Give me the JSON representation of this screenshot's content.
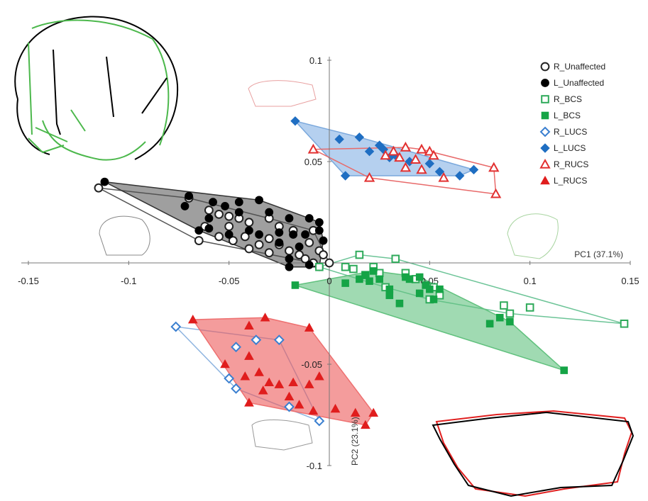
{
  "chart_data": {
    "type": "scatter",
    "title": "",
    "xlabel": "PC1 (37.1%)",
    "ylabel": "PC2 (23.1%)",
    "xlim": [
      -0.15,
      0.15
    ],
    "ylim": [
      -0.1,
      0.1
    ],
    "x_ticks": [
      "-0.15",
      "-0.1",
      "-0.05",
      "0",
      "0.05",
      "0.1",
      "0.15"
    ],
    "y_ticks": [
      "0.1",
      "0.05",
      "-0.05",
      "-0.1"
    ],
    "grid": false,
    "legend_position": "top-right",
    "series": [
      {
        "name": "R_Unaffected",
        "color": "#222222",
        "marker": "circle",
        "filled": false,
        "hull_fill": "none",
        "hull_stroke": "#555555",
        "points": [
          [
            -0.115,
            0.037
          ],
          [
            -0.07,
            0.032
          ],
          [
            -0.06,
            0.026
          ],
          [
            -0.055,
            0.024
          ],
          [
            -0.05,
            0.023
          ],
          [
            -0.045,
            0.022
          ],
          [
            -0.062,
            0.018
          ],
          [
            -0.05,
            0.018
          ],
          [
            -0.04,
            0.02
          ],
          [
            -0.03,
            0.022
          ],
          [
            -0.025,
            0.018
          ],
          [
            -0.055,
            0.013
          ],
          [
            -0.042,
            0.013
          ],
          [
            -0.03,
            0.012
          ],
          [
            -0.018,
            0.016
          ],
          [
            -0.008,
            0.016
          ],
          [
            -0.065,
            0.011
          ],
          [
            -0.048,
            0.011
          ],
          [
            -0.035,
            0.009
          ],
          [
            -0.025,
            0.009
          ],
          [
            -0.02,
            0.006
          ],
          [
            -0.01,
            0.01
          ],
          [
            -0.04,
            0.007
          ],
          [
            -0.03,
            0.005
          ],
          [
            -0.015,
            0.004
          ],
          [
            -0.005,
            0.006
          ],
          [
            -0.012,
            0.002
          ],
          [
            -0.003,
            0.004
          ],
          [
            -0.008,
            0.0
          ],
          [
            0.0,
            0.0
          ]
        ]
      },
      {
        "name": "L_Unaffected",
        "color": "#000000",
        "marker": "circle",
        "filled": true,
        "hull_fill": "rgba(80,80,80,0.55)",
        "hull_stroke": "#333333",
        "points": [
          [
            -0.112,
            0.04
          ],
          [
            -0.07,
            0.033
          ],
          [
            -0.072,
            0.028
          ],
          [
            -0.058,
            0.03
          ],
          [
            -0.052,
            0.028
          ],
          [
            -0.045,
            0.03
          ],
          [
            -0.035,
            0.031
          ],
          [
            -0.06,
            0.022
          ],
          [
            -0.045,
            0.025
          ],
          [
            -0.03,
            0.025
          ],
          [
            -0.02,
            0.022
          ],
          [
            -0.01,
            0.022
          ],
          [
            -0.005,
            0.02
          ],
          [
            -0.06,
            0.017
          ],
          [
            -0.05,
            0.014
          ],
          [
            -0.04,
            0.016
          ],
          [
            -0.035,
            0.014
          ],
          [
            -0.025,
            0.015
          ],
          [
            -0.018,
            0.014
          ],
          [
            -0.012,
            0.014
          ],
          [
            -0.005,
            0.016
          ],
          [
            -0.003,
            0.011
          ],
          [
            -0.015,
            0.008
          ],
          [
            -0.02,
            0.002
          ],
          [
            -0.01,
            -0.001
          ],
          [
            -0.02,
            -0.002
          ],
          [
            -0.005,
            -0.002
          ],
          [
            -0.025,
            0.01
          ],
          [
            -0.065,
            0.016
          ]
        ]
      },
      {
        "name": "R_BCS",
        "color": "#2eaa5a",
        "marker": "square",
        "filled": false,
        "hull_fill": "none",
        "hull_stroke": "#6cc497",
        "points": [
          [
            0.147,
            -0.03
          ],
          [
            0.1,
            -0.022
          ],
          [
            0.09,
            -0.025
          ],
          [
            0.087,
            -0.021
          ],
          [
            0.055,
            -0.016
          ],
          [
            0.052,
            -0.012
          ],
          [
            0.05,
            -0.018
          ],
          [
            0.043,
            -0.008
          ],
          [
            0.038,
            -0.005
          ],
          [
            0.028,
            -0.012
          ],
          [
            0.025,
            -0.005
          ],
          [
            0.022,
            -0.002
          ],
          [
            0.018,
            -0.006
          ],
          [
            0.015,
            0.004
          ],
          [
            0.012,
            -0.003
          ],
          [
            0.008,
            -0.002
          ],
          [
            -0.005,
            -0.002
          ],
          [
            0.033,
            0.002
          ]
        ]
      },
      {
        "name": "L_BCS",
        "color": "#15a446",
        "marker": "square",
        "filled": true,
        "hull_fill": "rgba(97,193,126,0.6)",
        "hull_stroke": "#61c17e",
        "points": [
          [
            -0.017,
            -0.011
          ],
          [
            0.008,
            -0.01
          ],
          [
            0.015,
            -0.008
          ],
          [
            0.018,
            -0.006
          ],
          [
            0.02,
            -0.009
          ],
          [
            0.022,
            -0.004
          ],
          [
            0.025,
            -0.008
          ],
          [
            0.03,
            -0.013
          ],
          [
            0.038,
            -0.007
          ],
          [
            0.04,
            -0.008
          ],
          [
            0.045,
            -0.007
          ],
          [
            0.048,
            -0.011
          ],
          [
            0.05,
            -0.013
          ],
          [
            0.052,
            -0.018
          ],
          [
            0.035,
            -0.02
          ],
          [
            0.045,
            -0.015
          ],
          [
            0.03,
            -0.016
          ],
          [
            0.085,
            -0.027
          ],
          [
            0.09,
            -0.029
          ],
          [
            0.08,
            -0.03
          ],
          [
            0.117,
            -0.053
          ],
          [
            0.055,
            -0.013
          ]
        ]
      },
      {
        "name": "R_LUCS",
        "color": "#3a7fd0",
        "marker": "diamond",
        "filled": false,
        "hull_fill": "none",
        "hull_stroke": "#8fb5e0",
        "points": [
          [
            -0.0765,
            -0.0315
          ],
          [
            -0.0465,
            -0.0415
          ],
          [
            -0.0365,
            -0.038
          ],
          [
            -0.025,
            -0.038
          ],
          [
            -0.05,
            -0.057
          ],
          [
            -0.0465,
            -0.062
          ],
          [
            -0.02,
            -0.071
          ],
          [
            -0.005,
            -0.078
          ]
        ]
      },
      {
        "name": "L_LUCS",
        "color": "#1f6ec2",
        "marker": "diamond",
        "filled": true,
        "hull_fill": "rgba(120,170,225,0.55)",
        "hull_stroke": "#7aa8dc",
        "points": [
          [
            -0.017,
            0.07
          ],
          [
            0.005,
            0.061
          ],
          [
            0.015,
            0.062
          ],
          [
            0.025,
            0.058
          ],
          [
            0.027,
            0.056
          ],
          [
            0.03,
            0.052
          ],
          [
            0.04,
            0.05
          ],
          [
            0.05,
            0.049
          ],
          [
            0.055,
            0.045
          ],
          [
            0.065,
            0.043
          ],
          [
            0.072,
            0.046
          ],
          [
            0.008,
            0.043
          ],
          [
            0.02,
            0.055
          ],
          [
            0.033,
            0.053
          ]
        ]
      },
      {
        "name": "R_RUCS",
        "color": "#e23030",
        "marker": "triangle",
        "filled": false,
        "hull_fill": "none",
        "hull_stroke": "#e86a6a",
        "points": [
          [
            -0.008,
            0.056
          ],
          [
            0.02,
            0.042
          ],
          [
            0.028,
            0.053
          ],
          [
            0.032,
            0.055
          ],
          [
            0.035,
            0.052
          ],
          [
            0.038,
            0.057
          ],
          [
            0.043,
            0.051
          ],
          [
            0.046,
            0.056
          ],
          [
            0.05,
            0.055
          ],
          [
            0.052,
            0.053
          ],
          [
            0.038,
            0.047
          ],
          [
            0.046,
            0.046
          ],
          [
            0.057,
            0.042
          ],
          [
            0.082,
            0.047
          ],
          [
            0.083,
            0.034
          ]
        ]
      },
      {
        "name": "L_RUCS",
        "color": "#e01d1d",
        "marker": "triangle",
        "filled": true,
        "hull_fill": "rgba(236,90,90,0.6)",
        "hull_stroke": "#ee7070",
        "points": [
          [
            -0.068,
            -0.028
          ],
          [
            -0.04,
            -0.031
          ],
          [
            -0.032,
            -0.027
          ],
          [
            -0.01,
            -0.032
          ],
          [
            -0.04,
            -0.046
          ],
          [
            -0.052,
            -0.05
          ],
          [
            -0.035,
            -0.054
          ],
          [
            -0.042,
            -0.056
          ],
          [
            -0.03,
            -0.059
          ],
          [
            -0.025,
            -0.06
          ],
          [
            -0.018,
            -0.059
          ],
          [
            -0.005,
            -0.056
          ],
          [
            -0.01,
            -0.06
          ],
          [
            -0.02,
            -0.066
          ],
          [
            -0.033,
            -0.063
          ],
          [
            -0.04,
            -0.069
          ],
          [
            -0.015,
            -0.07
          ],
          [
            -0.008,
            -0.073
          ],
          [
            0.003,
            -0.072
          ],
          [
            0.013,
            -0.074
          ],
          [
            0.022,
            -0.074
          ],
          [
            0.018,
            -0.08
          ]
        ]
      }
    ]
  }
}
